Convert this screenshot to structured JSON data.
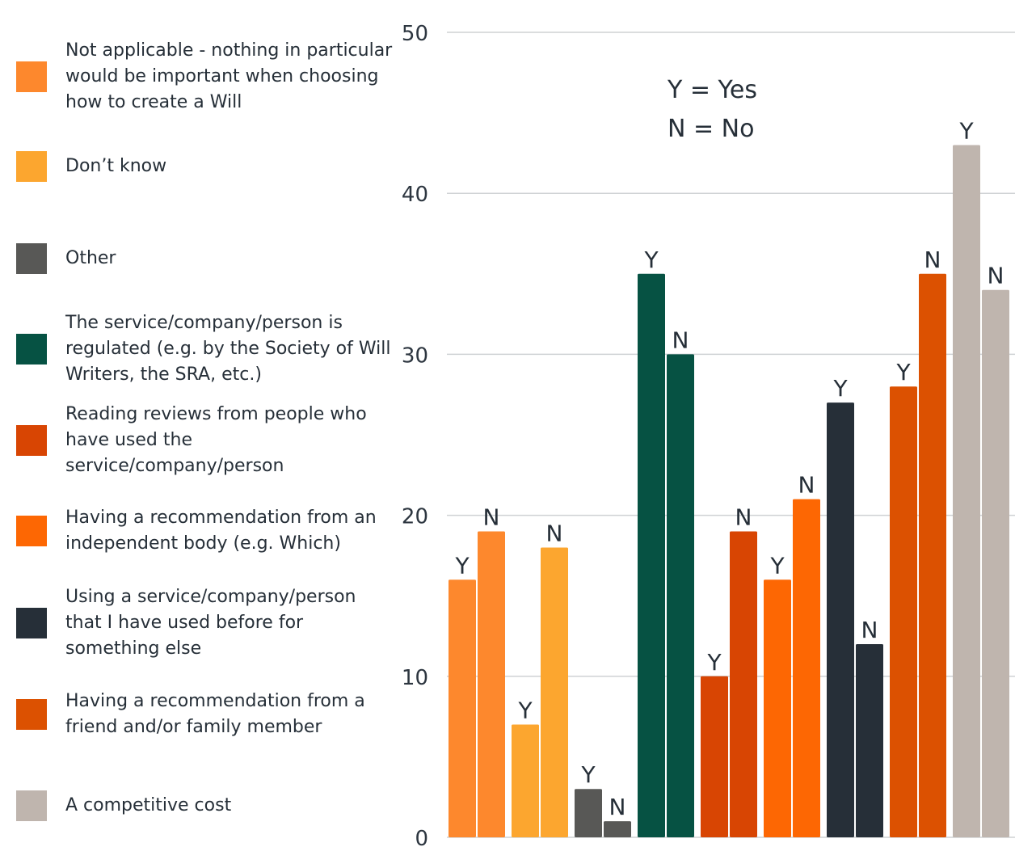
{
  "chart_data": {
    "type": "bar",
    "title": "",
    "xlabel": "",
    "ylabel": "",
    "ylim": [
      0,
      50
    ],
    "yticks": [
      0,
      10,
      20,
      30,
      40,
      50
    ],
    "grid": true,
    "legend_placement": "left",
    "annotation": [
      "Y = Yes",
      "N = No"
    ],
    "bar_labels": [
      "Y",
      "N"
    ],
    "series": [
      {
        "name": "Not applicable - nothing in particular would be important when choosing how to create a Will",
        "color": "#fd882d",
        "values": [
          16,
          19
        ]
      },
      {
        "name": "Don’t know",
        "color": "#fca62f",
        "values": [
          7,
          18
        ]
      },
      {
        "name": "Other",
        "color": "#585856",
        "values": [
          3,
          1
        ]
      },
      {
        "name": "The service/company/person is regulated (e.g. by the Society of Will Writers, the SRA, etc.)",
        "color": "#065243",
        "values": [
          35,
          30
        ]
      },
      {
        "name": "Reading reviews from people who have used the service/company/person",
        "color": "#d84503",
        "values": [
          10,
          19
        ]
      },
      {
        "name": "Having a recommendation from an independent body (e.g. Which)",
        "color": "#fd6703",
        "values": [
          16,
          21
        ]
      },
      {
        "name": "Using a service/company/person that I have used before for something else",
        "color": "#262f38",
        "values": [
          27,
          12
        ]
      },
      {
        "name": "Having a recommendation from a friend and/or family member",
        "color": "#dc5101",
        "values": [
          28,
          35
        ]
      },
      {
        "name": "A competitive cost",
        "color": "#bfb5ae",
        "values": [
          43,
          34
        ]
      }
    ]
  },
  "legend_order": [
    0,
    1,
    2,
    3,
    4,
    5,
    6,
    7,
    8
  ]
}
